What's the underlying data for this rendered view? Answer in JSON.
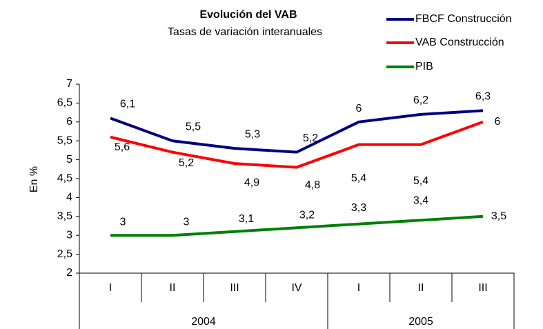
{
  "chart_data": {
    "type": "line",
    "title": "Evolución del VAB",
    "subtitle": "Tasas de variación interanuales",
    "y_label": "En %",
    "categories": [
      "I",
      "II",
      "III",
      "IV",
      "I",
      "II",
      "III"
    ],
    "x_groups": [
      "2004",
      "2004",
      "2004",
      "2004",
      "2005",
      "2005",
      "2005"
    ],
    "ylim": [
      2,
      7
    ],
    "yticks": [
      2,
      {
        "value": 2.5,
        "label": "2,5"
      },
      3,
      {
        "value": 3.5,
        "label": "3,5"
      },
      4,
      {
        "value": 4.5,
        "label": "4,5"
      },
      5,
      {
        "value": 5.5,
        "label": "5,5"
      },
      6,
      {
        "value": 6.5,
        "label": "6,5"
      },
      7
    ],
    "legend": "top-right",
    "series": [
      {
        "name": "FBCF Construcción",
        "color": "#000080",
        "values": [
          6.1,
          5.5,
          5.3,
          5.2,
          6,
          6.2,
          6.3
        ],
        "value_labels": [
          "6,1",
          "5,5",
          "5,3",
          "5,2",
          "6",
          "6,2",
          "6,3"
        ]
      },
      {
        "name": "VAB Construcción",
        "color": "#ff0000",
        "values": [
          5.6,
          5.2,
          4.9,
          4.8,
          5.4,
          5.4,
          6
        ],
        "value_labels": [
          "5,6",
          "5,2",
          "4,9",
          "4,8",
          "5,4",
          "5,4",
          "6"
        ]
      },
      {
        "name": "PIB",
        "color": "#008000",
        "values": [
          3,
          3,
          3.1,
          3.2,
          3.3,
          3.4,
          3.5
        ],
        "value_labels": [
          "3",
          "3",
          "3,1",
          "3,2",
          "3,3",
          "3,4",
          "3,5"
        ]
      }
    ]
  }
}
